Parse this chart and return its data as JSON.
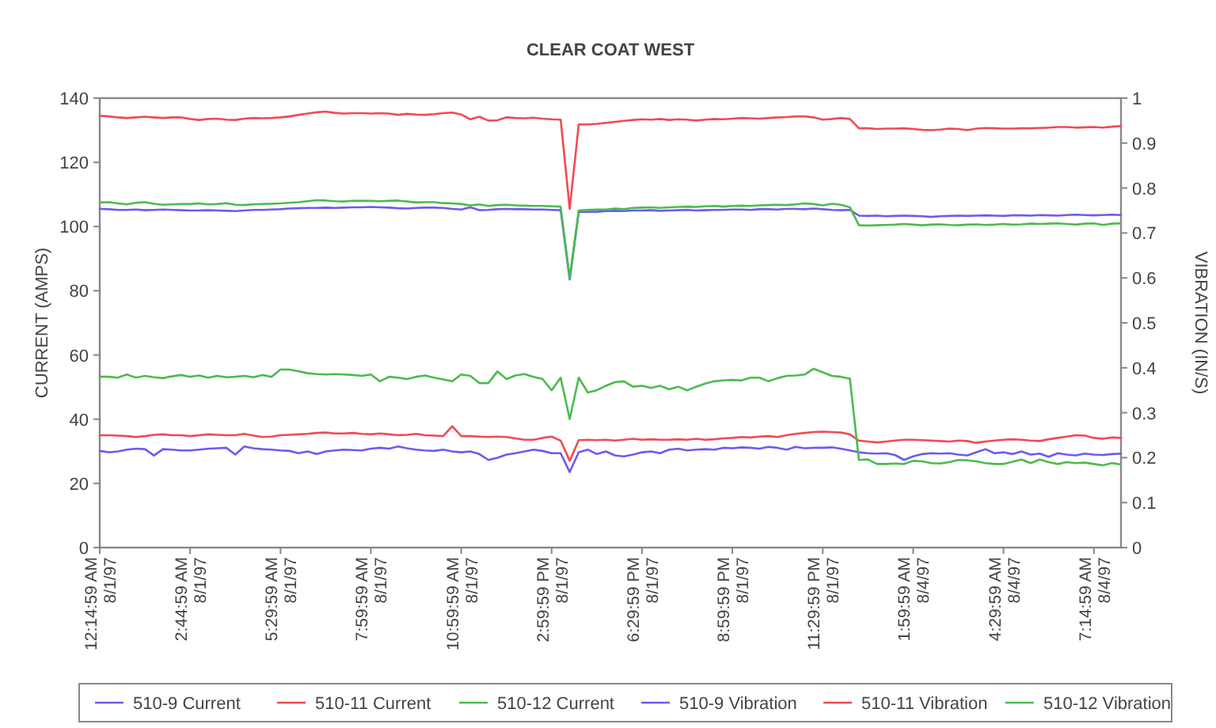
{
  "chart_data": {
    "type": "line",
    "title": "CLEAR COAT WEST",
    "ylabel": "CURRENT (AMPS)",
    "y2label": "VIBRATION (IN/S)",
    "categories": [
      "12:14:59 AM\n8/1/97",
      null,
      null,
      null,
      null,
      null,
      null,
      null,
      null,
      null,
      "2:44:59 AM\n8/1/97",
      null,
      null,
      null,
      null,
      null,
      null,
      null,
      null,
      null,
      "5:29:59 AM\n8/1/97",
      null,
      null,
      null,
      null,
      null,
      null,
      null,
      null,
      null,
      "7:59:59 AM\n8/1/97",
      null,
      null,
      null,
      null,
      null,
      null,
      null,
      null,
      null,
      "10:59:59 AM\n8/1/97",
      null,
      null,
      null,
      null,
      null,
      null,
      null,
      null,
      null,
      "2:59:59 PM\n8/1/97",
      null,
      null,
      null,
      null,
      null,
      null,
      null,
      null,
      null,
      "6:29:59 PM\n8/1/97",
      null,
      null,
      null,
      null,
      null,
      null,
      null,
      null,
      null,
      "8:59:59 PM\n8/1/97",
      null,
      null,
      null,
      null,
      null,
      null,
      null,
      null,
      null,
      "11:29:59 PM\n8/1/97",
      null,
      null,
      null,
      null,
      null,
      null,
      null,
      null,
      null,
      "1:59:59 AM\n8/4/97",
      null,
      null,
      null,
      null,
      null,
      null,
      null,
      null,
      null,
      "4:29:59 AM\n8/4/97",
      null,
      null,
      null,
      null,
      null,
      null,
      null,
      null,
      null,
      "7:14:59 AM\n8/4/97",
      null,
      null,
      null
    ],
    "ylim": [
      0,
      140
    ],
    "yticks": [
      0,
      20,
      40,
      60,
      80,
      100,
      120,
      140
    ],
    "y2lim": [
      0,
      1
    ],
    "y2ticks": [
      0,
      0.1,
      0.2,
      0.3,
      0.4,
      0.5,
      0.6,
      0.7,
      0.8,
      0.9,
      1
    ],
    "legend": "bottom",
    "marker": "none",
    "line_style": "solid",
    "series": [
      {
        "name": "510-9 Current",
        "color": "#6a5cf0",
        "values": [
          105.5,
          105.4,
          105.2,
          105.2,
          105.3,
          105.1,
          105.2,
          105.3,
          105.2,
          105.1,
          105,
          105,
          105.1,
          105,
          104.9,
          104.8,
          105,
          105.2,
          105.2,
          105.3,
          105.4,
          105.6,
          105.7,
          105.8,
          105.8,
          105.9,
          105.8,
          105.9,
          106,
          106,
          106.1,
          106,
          105.9,
          105.7,
          105.6,
          105.8,
          105.9,
          105.9,
          105.8,
          105.5,
          105.3,
          106,
          105.1,
          105.2,
          105.4,
          105.5,
          105.4,
          105.4,
          105.3,
          105.3,
          105.2,
          105.1,
          83.5,
          104.5,
          104.6,
          104.6,
          104.8,
          104.9,
          104.8,
          105,
          105,
          105.1,
          104.9,
          105,
          105.1,
          105.2,
          105,
          105.1,
          105.2,
          105.2,
          105.3,
          105.3,
          105.2,
          105.4,
          105.4,
          105.3,
          105.5,
          105.5,
          105.4,
          105.6,
          105.4,
          105.2,
          105.1,
          105.2,
          103.4,
          103.3,
          103.4,
          103.2,
          103.3,
          103.4,
          103.3,
          103.2,
          103,
          103.2,
          103.3,
          103.4,
          103.3,
          103.4,
          103.5,
          103.4,
          103.3,
          103.5,
          103.5,
          103.4,
          103.6,
          103.5,
          103.4,
          103.6,
          103.7,
          103.6,
          103.5,
          103.6,
          103.7,
          103.6
        ]
      },
      {
        "name": "510-11 Current",
        "color": "#f04a55",
        "values": [
          134.5,
          134.3,
          134,
          133.8,
          134,
          134.2,
          134,
          133.8,
          134,
          134,
          133.5,
          133.2,
          133.5,
          133.6,
          133.3,
          133.2,
          133.6,
          133.8,
          133.7,
          133.8,
          134,
          134.3,
          134.8,
          135.2,
          135.6,
          135.8,
          135.4,
          135.2,
          135.3,
          135.3,
          135.2,
          135.3,
          135.2,
          134.8,
          135.1,
          134.9,
          134.8,
          135,
          135.3,
          135.5,
          134.9,
          133.4,
          134.2,
          133,
          133.1,
          134,
          133.8,
          133.7,
          133.9,
          133.6,
          133.4,
          133.3,
          105.5,
          131.8,
          131.8,
          132,
          132.3,
          132.6,
          132.9,
          133.2,
          133.4,
          133.3,
          133.5,
          133.2,
          133.4,
          133.3,
          133,
          133.3,
          133.5,
          133.4,
          133.6,
          133.8,
          133.7,
          133.6,
          133.8,
          134,
          134.1,
          134.3,
          134.3,
          134,
          133.3,
          133.5,
          133.8,
          133.5,
          130.6,
          130.6,
          130.4,
          130.5,
          130.5,
          130.6,
          130.4,
          130.1,
          130,
          130.2,
          130.5,
          130.4,
          130,
          130.5,
          130.7,
          130.6,
          130.5,
          130.5,
          130.6,
          130.6,
          130.7,
          130.8,
          131,
          131,
          130.8,
          130.9,
          131,
          130.8,
          131.1,
          131.3
        ]
      },
      {
        "name": "510-12 Current",
        "color": "#4cbb4c",
        "values": [
          107.5,
          107.6,
          107.2,
          106.9,
          107.4,
          107.6,
          107.1,
          106.8,
          106.9,
          107,
          107,
          107.2,
          106.9,
          107,
          107.3,
          106.8,
          106.7,
          106.9,
          107,
          107.1,
          107.2,
          107.4,
          107.6,
          107.9,
          108.2,
          108.1,
          107.9,
          107.8,
          108,
          108,
          108,
          107.9,
          108,
          108.1,
          107.8,
          107.5,
          107.6,
          107.6,
          107.3,
          107.2,
          107,
          106.6,
          106.9,
          106.4,
          106.7,
          106.8,
          106.6,
          106.5,
          106.4,
          106.4,
          106.3,
          106.2,
          84,
          105,
          105.2,
          105.3,
          105.3,
          105.6,
          105.4,
          105.8,
          105.9,
          106,
          105.8,
          106,
          106.1,
          106.2,
          106.1,
          106.3,
          106.4,
          106.2,
          106.4,
          106.5,
          106.4,
          106.6,
          106.7,
          106.8,
          106.7,
          106.9,
          107.2,
          107,
          106.6,
          107.1,
          106.8,
          106,
          100.4,
          100.3,
          100.4,
          100.5,
          100.6,
          100.8,
          100.6,
          100.4,
          100.6,
          100.7,
          100.5,
          100.4,
          100.6,
          100.7,
          100.5,
          100.6,
          100.8,
          100.6,
          100.7,
          100.9,
          100.8,
          100.9,
          101,
          100.8,
          100.6,
          100.9,
          101,
          100.5,
          100.9,
          101
        ]
      },
      {
        "name": "510-9 Vibration",
        "color": "#6a5cf0",
        "axis": "y2",
        "values": [
          0.215,
          0.212,
          0.214,
          0.218,
          0.22,
          0.219,
          0.205,
          0.219,
          0.218,
          0.216,
          0.216,
          0.218,
          0.22,
          0.221,
          0.222,
          0.207,
          0.225,
          0.221,
          0.219,
          0.218,
          0.216,
          0.215,
          0.21,
          0.214,
          0.208,
          0.214,
          0.216,
          0.218,
          0.217,
          0.216,
          0.22,
          0.222,
          0.22,
          0.225,
          0.221,
          0.218,
          0.216,
          0.215,
          0.218,
          0.214,
          0.212,
          0.214,
          0.208,
          0.195,
          0.2,
          0.207,
          0.21,
          0.214,
          0.218,
          0.215,
          0.21,
          0.21,
          0.168,
          0.212,
          0.218,
          0.208,
          0.214,
          0.205,
          0.203,
          0.207,
          0.212,
          0.214,
          0.21,
          0.218,
          0.22,
          0.216,
          0.218,
          0.219,
          0.218,
          0.222,
          0.221,
          0.223,
          0.222,
          0.22,
          0.224,
          0.222,
          0.218,
          0.224,
          0.221,
          0.222,
          0.222,
          0.223,
          0.22,
          0.216,
          0.212,
          0.21,
          0.209,
          0.21,
          0.206,
          0.195,
          0.203,
          0.208,
          0.21,
          0.209,
          0.21,
          0.207,
          0.205,
          0.212,
          0.219,
          0.21,
          0.212,
          0.208,
          0.214,
          0.207,
          0.209,
          0.202,
          0.21,
          0.207,
          0.205,
          0.209,
          0.207,
          0.206,
          0.208,
          0.209
        ]
      },
      {
        "name": "510-11 Vibration",
        "color": "#f04a55",
        "axis": "y2",
        "values": [
          0.25,
          0.25,
          0.249,
          0.248,
          0.246,
          0.248,
          0.251,
          0.252,
          0.25,
          0.25,
          0.248,
          0.25,
          0.252,
          0.251,
          0.25,
          0.25,
          0.253,
          0.249,
          0.246,
          0.247,
          0.25,
          0.251,
          0.252,
          0.253,
          0.255,
          0.256,
          0.254,
          0.254,
          0.255,
          0.253,
          0.252,
          0.254,
          0.252,
          0.25,
          0.251,
          0.253,
          0.25,
          0.249,
          0.248,
          0.27,
          0.248,
          0.248,
          0.247,
          0.246,
          0.247,
          0.246,
          0.243,
          0.24,
          0.24,
          0.244,
          0.247,
          0.238,
          0.193,
          0.239,
          0.24,
          0.239,
          0.24,
          0.238,
          0.24,
          0.242,
          0.24,
          0.241,
          0.24,
          0.24,
          0.241,
          0.24,
          0.242,
          0.24,
          0.241,
          0.243,
          0.244,
          0.246,
          0.245,
          0.247,
          0.248,
          0.246,
          0.25,
          0.253,
          0.255,
          0.257,
          0.258,
          0.257,
          0.256,
          0.252,
          0.238,
          0.236,
          0.234,
          0.236,
          0.238,
          0.24,
          0.24,
          0.239,
          0.238,
          0.237,
          0.236,
          0.238,
          0.237,
          0.233,
          0.236,
          0.238,
          0.24,
          0.241,
          0.24,
          0.238,
          0.237,
          0.241,
          0.244,
          0.247,
          0.25,
          0.249,
          0.244,
          0.242,
          0.245,
          0.244
        ]
      },
      {
        "name": "510-12 Vibration",
        "color": "#4cbb4c",
        "axis": "y2",
        "values": [
          0.38,
          0.38,
          0.378,
          0.385,
          0.378,
          0.382,
          0.379,
          0.377,
          0.381,
          0.384,
          0.38,
          0.383,
          0.378,
          0.382,
          0.379,
          0.38,
          0.382,
          0.379,
          0.384,
          0.38,
          0.396,
          0.396,
          0.392,
          0.388,
          0.386,
          0.385,
          0.386,
          0.385,
          0.384,
          0.382,
          0.385,
          0.37,
          0.38,
          0.378,
          0.375,
          0.38,
          0.383,
          0.378,
          0.374,
          0.37,
          0.385,
          0.382,
          0.366,
          0.366,
          0.392,
          0.375,
          0.383,
          0.386,
          0.38,
          0.375,
          0.35,
          0.378,
          0.286,
          0.378,
          0.345,
          0.35,
          0.36,
          0.368,
          0.37,
          0.358,
          0.36,
          0.355,
          0.36,
          0.352,
          0.358,
          0.35,
          0.358,
          0.365,
          0.37,
          0.372,
          0.373,
          0.372,
          0.378,
          0.378,
          0.37,
          0.377,
          0.382,
          0.383,
          0.385,
          0.398,
          0.39,
          0.382,
          0.38,
          0.376,
          0.195,
          0.196,
          0.186,
          0.186,
          0.187,
          0.186,
          0.193,
          0.192,
          0.188,
          0.187,
          0.19,
          0.195,
          0.194,
          0.192,
          0.188,
          0.186,
          0.186,
          0.191,
          0.196,
          0.188,
          0.196,
          0.19,
          0.186,
          0.19,
          0.188,
          0.189,
          0.186,
          0.183,
          0.188,
          0.185
        ]
      }
    ]
  }
}
